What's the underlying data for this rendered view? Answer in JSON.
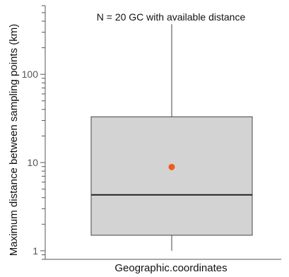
{
  "chart_data": {
    "type": "box",
    "annotation": "N = 20 GC with available distance",
    "xlabel": "Geographic.coordinates",
    "ylabel": "Maximum distance between sampling points (km)",
    "y_scale": "log",
    "ylim": [
      0.8,
      600
    ],
    "y_ticks": [
      1,
      10,
      100
    ],
    "y_tick_labels": [
      "1",
      "10",
      "100"
    ],
    "categories": [
      "Geographic.coordinates"
    ],
    "box": {
      "whisker_low": 1.0,
      "q1": 1.5,
      "median": 4.3,
      "q3": 33,
      "whisker_high": 370,
      "mean": 8.9
    },
    "colors": {
      "box_fill": "#d3d3d3",
      "box_stroke": "#444444",
      "median": "#222222",
      "mean": "#f05a1e",
      "axis": "#555555"
    },
    "grid": false
  }
}
